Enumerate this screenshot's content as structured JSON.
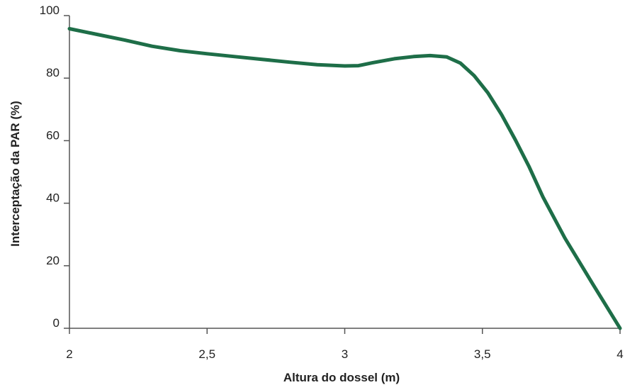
{
  "chart_data": {
    "type": "line",
    "title": "",
    "xlabel": "Altura do dossel (m)",
    "ylabel": "Interceptação da PAR (%)",
    "xlim": [
      2,
      4
    ],
    "ylim": [
      0,
      100
    ],
    "x_ticks": [
      2,
      2.5,
      3,
      3.5,
      4
    ],
    "x_tick_labels": [
      "2",
      "2,5",
      "3",
      "3,5",
      "4"
    ],
    "y_ticks": [
      0,
      20,
      40,
      60,
      80,
      100
    ],
    "y_tick_labels": [
      "0",
      "20",
      "40",
      "60",
      "80",
      "100"
    ],
    "grid": false,
    "legend": "none",
    "line_color": "#1e6e48",
    "series": [
      {
        "x": [
          2.0,
          2.1,
          2.2,
          2.3,
          2.4,
          2.5,
          2.6,
          2.7,
          2.8,
          2.9,
          3.0,
          3.05,
          3.1,
          3.18,
          3.25,
          3.31,
          3.37,
          3.42,
          3.47,
          3.52,
          3.57,
          3.62,
          3.67,
          3.72,
          3.8,
          3.9,
          4.0
        ],
        "values": [
          95.8,
          94.0,
          92.2,
          90.2,
          88.8,
          87.8,
          86.9,
          86.0,
          85.1,
          84.3,
          83.9,
          84.0,
          84.9,
          86.2,
          86.9,
          87.2,
          86.8,
          84.8,
          80.8,
          75.3,
          68.3,
          60.2,
          51.6,
          42.0,
          28.8,
          14.3,
          0.0
        ]
      }
    ]
  }
}
